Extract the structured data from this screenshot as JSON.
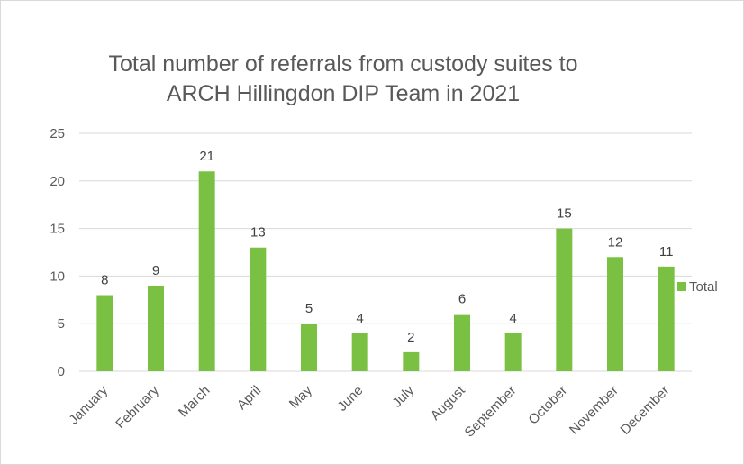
{
  "chart_data": {
    "type": "bar",
    "title_line1": "Total number of referrals from custody suites to",
    "title_line2": "ARCH Hillingdon DIP Team in 2021",
    "categories": [
      "January",
      "February",
      "March",
      "April",
      "May",
      "June",
      "July",
      "August",
      "September",
      "October",
      "November",
      "December"
    ],
    "series": [
      {
        "name": "Total",
        "values": [
          8,
          9,
          21,
          13,
          5,
          4,
          2,
          6,
          4,
          15,
          12,
          11
        ],
        "color": "#7ac143"
      }
    ],
    "ylim": [
      0,
      25
    ],
    "yticks": [
      0,
      5,
      10,
      15,
      20,
      25
    ],
    "grid": true,
    "legend": "right"
  }
}
